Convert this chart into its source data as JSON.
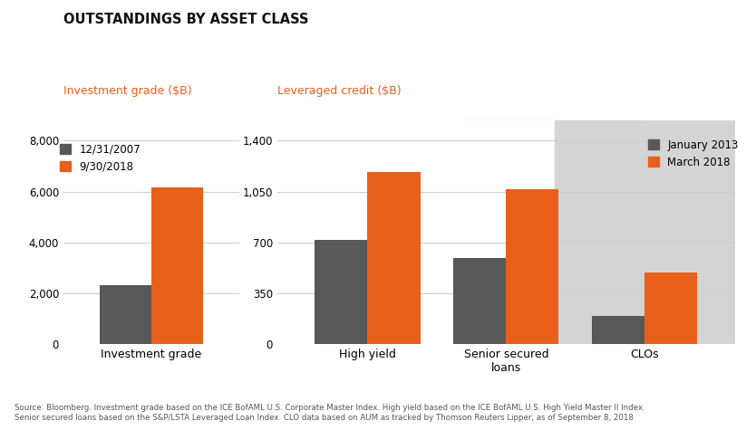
{
  "title": "OUTSTANDINGS BY ASSET CLASS",
  "left_panel": {
    "ylabel": "Investment grade ($B)",
    "ylabel_color": "#E8601A",
    "yticks": [
      0,
      2000,
      4000,
      6000,
      8000
    ],
    "ylim": [
      0,
      8800
    ],
    "categories": [
      "Investment grade"
    ],
    "bar1_values": [
      2300
    ],
    "bar2_values": [
      6150
    ],
    "legend_label1": "12/31/2007",
    "legend_label2": "9/30/2018",
    "xlabel_labels": [
      "Investment grade"
    ]
  },
  "right_panel": {
    "ylabel": "Leveraged credit ($B)",
    "ylabel_color": "#E8601A",
    "yticks": [
      0,
      350,
      700,
      1050,
      1400
    ],
    "ylim": [
      0,
      1540
    ],
    "categories": [
      "High yield",
      "Senior secured\nloans",
      "CLOs"
    ],
    "bar1_values": [
      715,
      590,
      195
    ],
    "bar2_values": [
      1185,
      1065,
      490
    ],
    "legend_label1": "January 2013",
    "legend_label2": "March 2018",
    "xlabel_labels": [
      "High yield",
      "Senior secured\nloans",
      "CLOs"
    ],
    "clo_bg": true
  },
  "bar_color1": "#585858",
  "bar_color2": "#E8601A",
  "bar_width": 0.38,
  "footnote": "Source: Bloomberg. Investment grade based on the ICE BofAML U.S. Corporate Master Index. High yield based on the ICE BofAML U.S. High Yield Master II Index.\nSenior secured loans based on the S&P/LSTA Leveraged Loan Index. CLO data based on AUM as tracked by Thomson Reuters Lipper, as of September 8, 2018",
  "bg_color": "#FFFFFF",
  "clo_bg_color": "#D4D4D4",
  "grid_color": "#CCCCCC"
}
